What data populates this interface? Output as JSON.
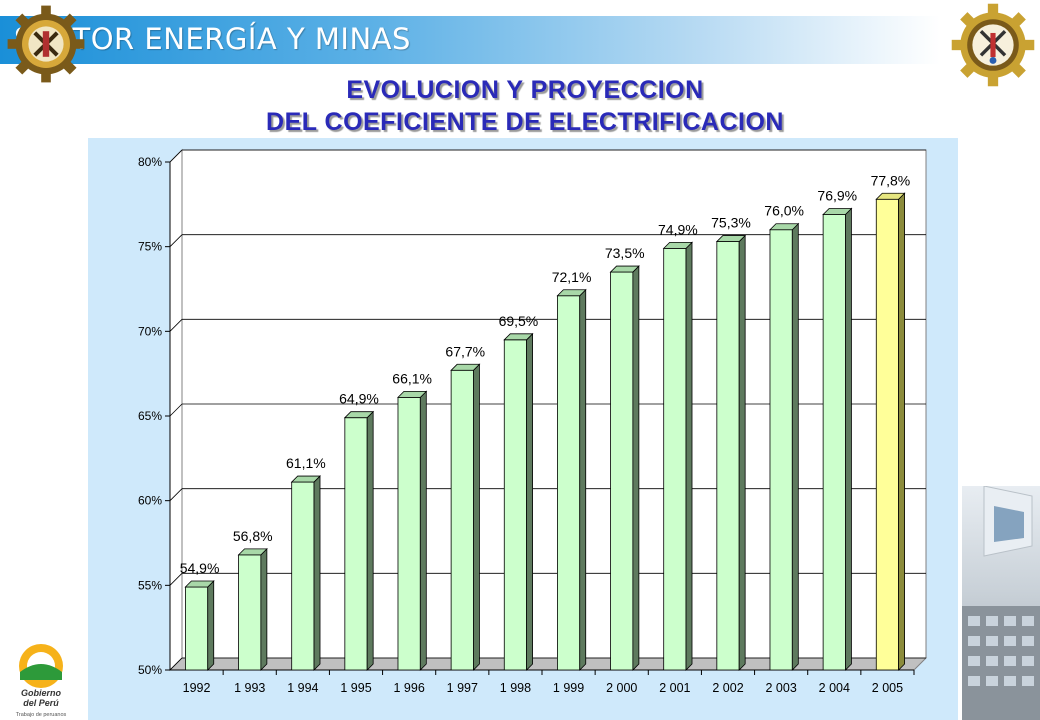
{
  "header": {
    "text": "SECTOR ENERGÍA Y MINAS"
  },
  "title": {
    "line1": "EVOLUCION Y PROYECCION",
    "line2": "DEL COEFICIENTE DE ELECTRIFICACION"
  },
  "colors": {
    "bar_face": "#ccffcc",
    "bar_side": "#5e7a5e",
    "bar_top": "#a8d8a8",
    "projection_face": "#ffff99",
    "projection_side": "#8c8c3c",
    "projection_top": "#e6e680",
    "plot_background": "#cfe9fb",
    "title": "#2a2ab8"
  },
  "chart_data": {
    "type": "bar",
    "categories": [
      "1992",
      "1 993",
      "1 994",
      "1 995",
      "1 996",
      "1 997",
      "1 998",
      "1 999",
      "2 000",
      "2 001",
      "2 002",
      "2 003",
      "2 004",
      "2 005"
    ],
    "values": [
      54.9,
      56.8,
      61.1,
      64.9,
      66.1,
      67.7,
      69.5,
      72.1,
      73.5,
      74.9,
      75.3,
      76.0,
      76.9,
      77.8
    ],
    "data_labels": [
      "54,9%",
      "56,8%",
      "61,1%",
      "64,9%",
      "66,1%",
      "67,7%",
      "69,5%",
      "72,1%",
      "73,5%",
      "74,9%",
      "75,3%",
      "76,0%",
      "76,9%",
      "77,8%"
    ],
    "highlighted_index": 13,
    "y_ticks": [
      50,
      55,
      60,
      65,
      70,
      75,
      80
    ],
    "y_tick_labels": [
      "50%",
      "55%",
      "60%",
      "65%",
      "70%",
      "75%",
      "80%"
    ],
    "ylim": [
      50,
      80
    ],
    "grid": true,
    "style": "3d-bar",
    "legend": "none"
  },
  "logos": {
    "gobierno_tagline": "Trabajo de peruanos"
  }
}
